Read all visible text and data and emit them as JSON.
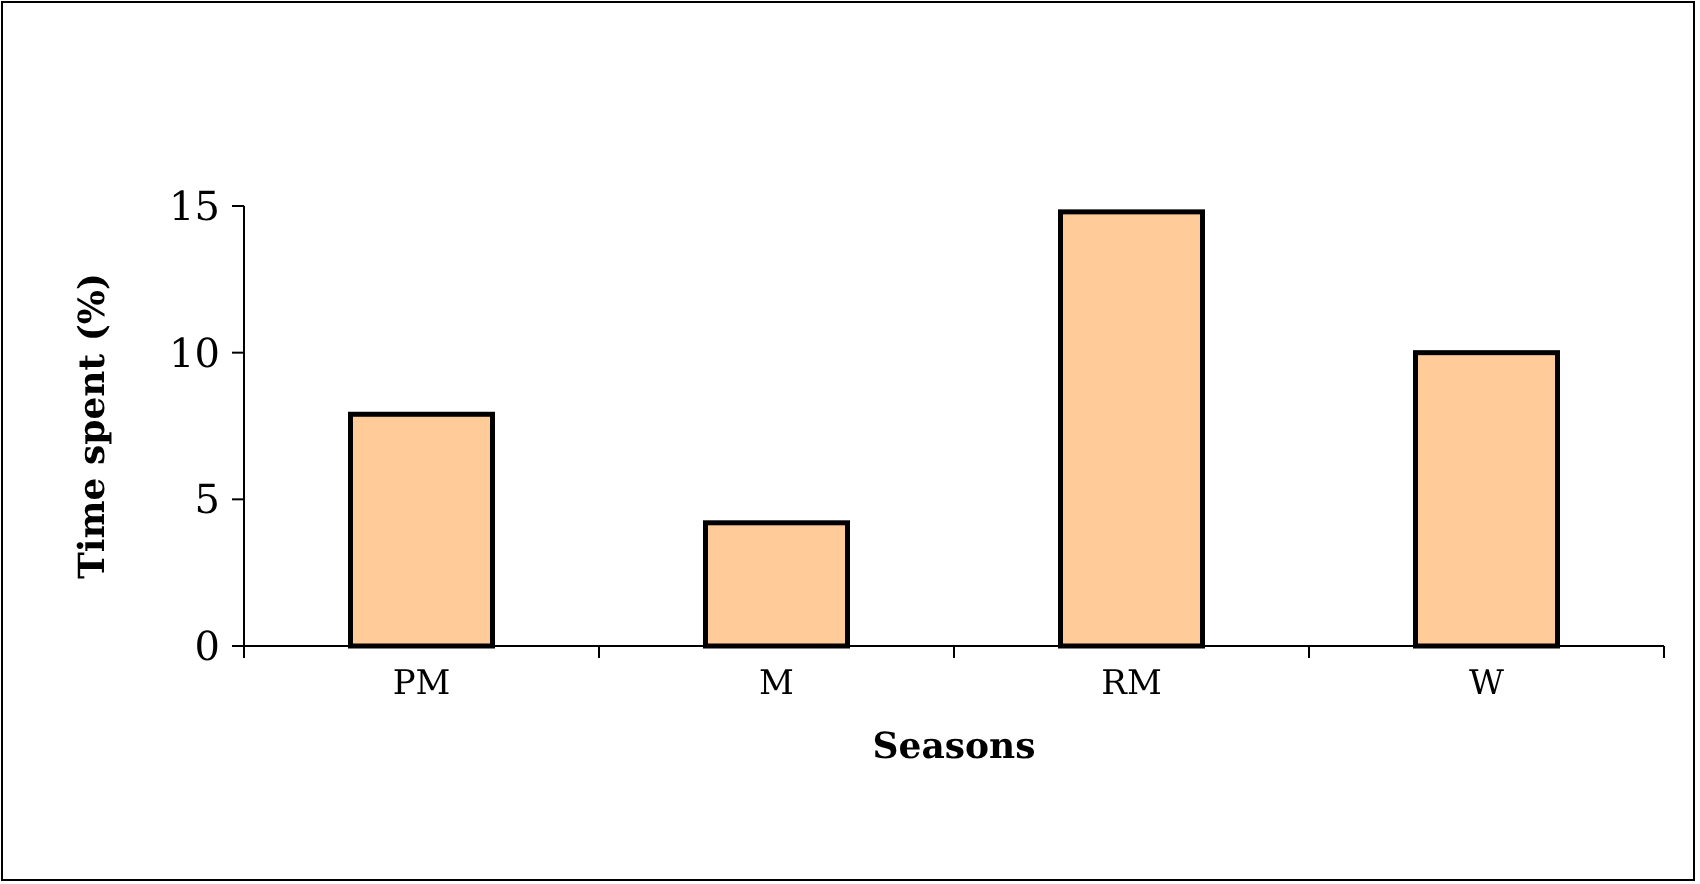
{
  "chart_data": {
    "type": "bar",
    "xlabel": "Seasons",
    "ylabel": "Time spent (%)",
    "categories": [
      "PM",
      "M",
      "RM",
      "W"
    ],
    "values": [
      7.9,
      4.2,
      14.8,
      10.0
    ],
    "color": "#ffcc99",
    "ylim": [
      0,
      15
    ],
    "yticks": [
      0,
      5,
      10,
      15
    ],
    "grid": false
  }
}
